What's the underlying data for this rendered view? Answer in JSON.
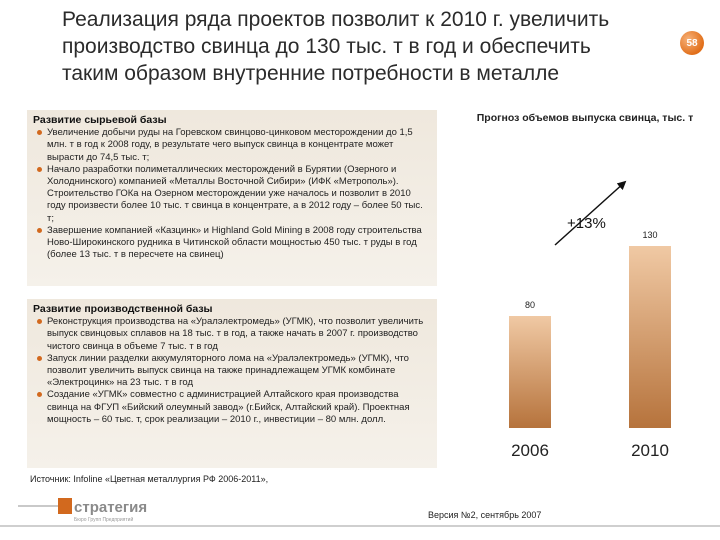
{
  "slide": {
    "title": "Реализация ряда проектов позволит к 2010 г. увеличить производство свинца до 130 тыс. т в год и обеспечить таким образом внутренние потребности в металле",
    "page_number": "58",
    "source": "Источник: Infoline «Цветная металлургия РФ 2006-2011»,",
    "version": "Версия №2, сентябрь 2007"
  },
  "logo": {
    "main_text": "стратегия",
    "sub_text": "Бюро Групп Предприятий"
  },
  "colors": {
    "accent": "#d2691e",
    "bar_top": "#f0c9a4",
    "bar_bottom": "#b6733c",
    "panel_bg": "#efe8dd"
  },
  "sections": [
    {
      "heading": "Развитие сырьевой базы",
      "items": [
        "Увеличение добычи руды на Горевском свинцово-цинковом месторождении до 1,5 млн. т в год к 2008 году, в результате чего выпуск свинца в концентрате может вырасти до 74,5 тыс. т;",
        "Начало разработки полиметаллических месторождений в Бурятии (Озерного и Холоднинского) компанией «Металлы Восточной Сибири» (ИФК «Метрополь»). Строительство ГОКа на Озерном месторождении уже началось и позволит в 2010 году произвести более 10 тыс. т свинца в концентрате, а в 2012 году – более 50 тыс. т;",
        "Завершение компанией «Казцинк» и Highland Gold Mining в 2008 году строительства Ново-Широкинского рудника в Читинской области мощностью 450 тыс. т руды в год (более 13 тыс. т в пересчете на свинец)"
      ]
    },
    {
      "heading": "Развитие производственной базы",
      "items": [
        "Реконструкция производства на «Уралэлектромедь» (УГМК), что позволит увеличить выпуск свинцовых сплавов на 18 тыс. т в год, а также начать в 2007 г. производство чистого свинца в объеме 7 тыс. т в год",
        "Запуск линии разделки аккумуляторного лома на «Уралэлектромедь» (УГМК), что позволит увеличить выпуск свинца на также принадлежащем УГМК комбинате «Электроцинк» на 23 тыс. т в год",
        "Создание «УГМК» совместно с администрацией Алтайского края производства свинца на ФГУП «Бийский олеумный завод» (г.Бийск, Алтайский край). Проектная мощность – 60 тыс. т, срок реализации – 2010 г., инвестиции – 80 млн. долл."
      ]
    }
  ],
  "chart_data": {
    "type": "bar",
    "title": "Прогноз объемов выпуска свинца, тыс. т",
    "categories": [
      "2006",
      "2010"
    ],
    "values": [
      80,
      130
    ],
    "value_labels": [
      "80",
      "130"
    ],
    "annotation": "+13%",
    "ylim": [
      0,
      130
    ],
    "grid": false,
    "legend": "none"
  }
}
